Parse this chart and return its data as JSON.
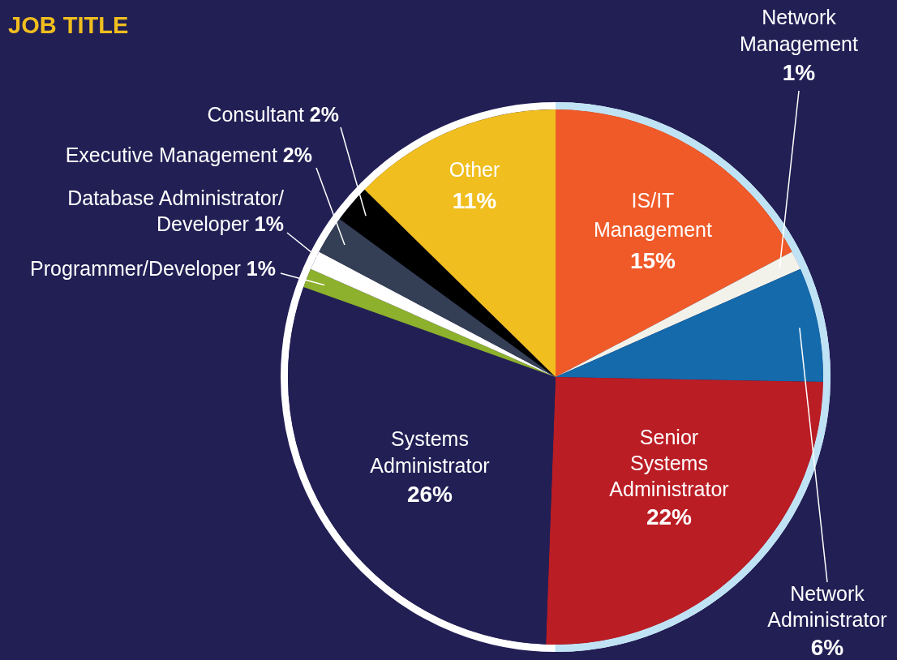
{
  "chart_data": {
    "type": "pie",
    "title": "JOB TITLE",
    "categories": [
      "IS/IT Management",
      "Network Management",
      "Network Administrator",
      "Senior Systems Administrator",
      "Systems Administrator",
      "Programmer/Developer",
      "Database Administrator/ Developer",
      "Executive Management",
      "Consultant",
      "Other"
    ],
    "values": [
      15,
      1,
      6,
      22,
      26,
      1,
      1,
      2,
      2,
      11
    ],
    "colors": [
      "#f05a28",
      "#f3f2ea",
      "#146aab",
      "#bb1d24",
      "#221f55",
      "#8db02d",
      "#ffffff",
      "#343f55",
      "#000000",
      "#f0be1e"
    ],
    "value_labels": [
      "15%",
      "1%",
      "6%",
      "22%",
      "26%",
      "1%",
      "1%",
      "2%",
      "2%",
      "11%"
    ]
  }
}
